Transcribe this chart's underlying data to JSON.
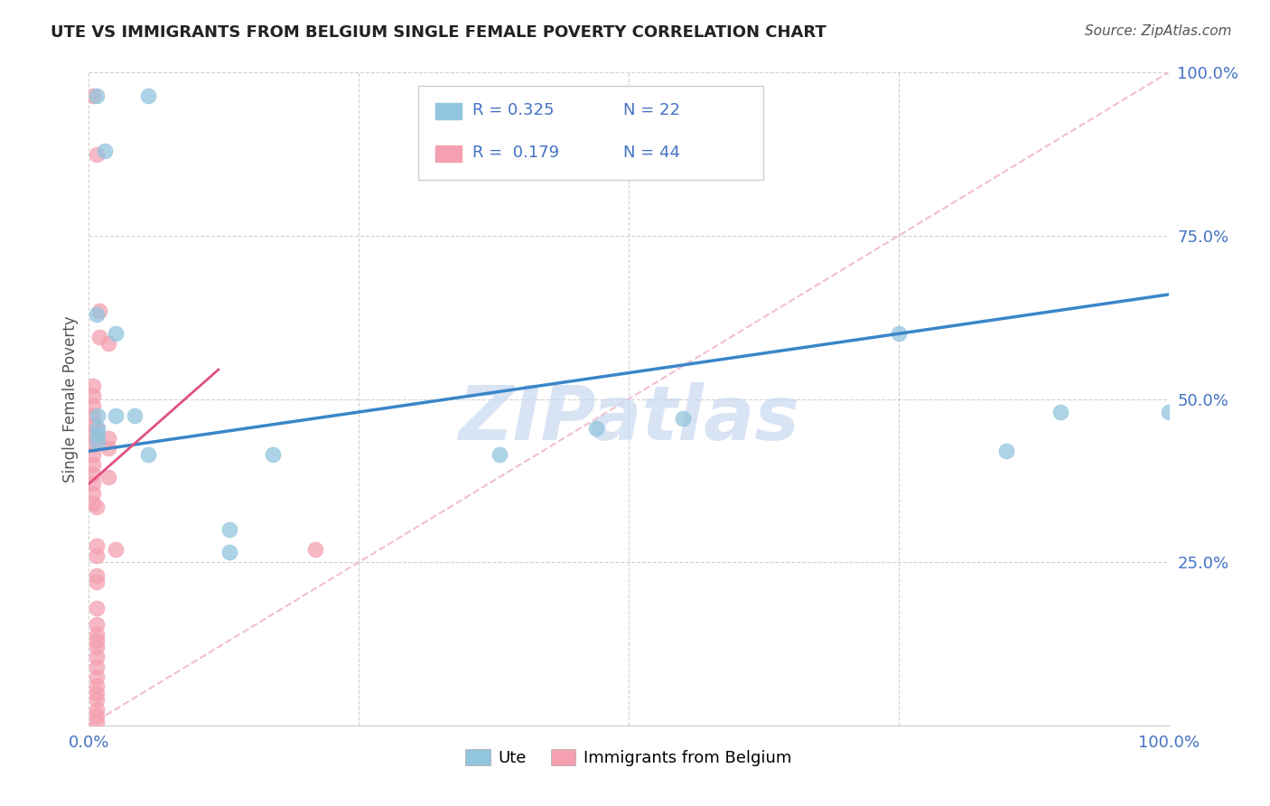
{
  "title": "UTE VS IMMIGRANTS FROM BELGIUM SINGLE FEMALE POVERTY CORRELATION CHART",
  "source": "Source: ZipAtlas.com",
  "ylabel_label": "Single Female Poverty",
  "x_min": 0.0,
  "x_max": 1.0,
  "y_min": 0.0,
  "y_max": 1.0,
  "ute_color": "#92c5de",
  "ute_edge_color": "#92c5de",
  "belgium_color": "#f4a0b0",
  "belgium_edge_color": "#f4a0b0",
  "ute_line_color": "#3a86c8",
  "belgium_line_color": "#e05080",
  "diagonal_color": "#f0b8c8",
  "tick_label_color": "#4472c4",
  "ute_R": "0.325",
  "ute_N": "22",
  "belgium_R": "0.179",
  "belgium_N": "44",
  "watermark_text": "ZIPatlas",
  "watermark_color": "#c8d8f0",
  "ute_points": [
    [
      0.007,
      0.965
    ],
    [
      0.055,
      0.965
    ],
    [
      0.015,
      0.88
    ],
    [
      0.007,
      0.63
    ],
    [
      0.025,
      0.6
    ],
    [
      0.025,
      0.475
    ],
    [
      0.042,
      0.475
    ],
    [
      0.008,
      0.475
    ],
    [
      0.008,
      0.455
    ],
    [
      0.008,
      0.445
    ],
    [
      0.008,
      0.435
    ],
    [
      0.055,
      0.415
    ],
    [
      0.17,
      0.415
    ],
    [
      0.38,
      0.415
    ],
    [
      0.13,
      0.3
    ],
    [
      0.13,
      0.265
    ],
    [
      0.47,
      0.455
    ],
    [
      0.55,
      0.47
    ],
    [
      0.75,
      0.6
    ],
    [
      0.9,
      0.48
    ],
    [
      0.85,
      0.42
    ],
    [
      1.0,
      0.48
    ]
  ],
  "belgium_points": [
    [
      0.004,
      0.965
    ],
    [
      0.007,
      0.875
    ],
    [
      0.01,
      0.635
    ],
    [
      0.01,
      0.595
    ],
    [
      0.018,
      0.585
    ],
    [
      0.004,
      0.52
    ],
    [
      0.004,
      0.505
    ],
    [
      0.004,
      0.49
    ],
    [
      0.004,
      0.475
    ],
    [
      0.004,
      0.46
    ],
    [
      0.004,
      0.445
    ],
    [
      0.004,
      0.43
    ],
    [
      0.004,
      0.415
    ],
    [
      0.004,
      0.4
    ],
    [
      0.004,
      0.385
    ],
    [
      0.004,
      0.37
    ],
    [
      0.004,
      0.355
    ],
    [
      0.004,
      0.34
    ],
    [
      0.007,
      0.455
    ],
    [
      0.007,
      0.44
    ],
    [
      0.018,
      0.44
    ],
    [
      0.018,
      0.425
    ],
    [
      0.018,
      0.38
    ],
    [
      0.025,
      0.27
    ],
    [
      0.21,
      0.27
    ],
    [
      0.007,
      0.335
    ],
    [
      0.007,
      0.275
    ],
    [
      0.007,
      0.26
    ],
    [
      0.007,
      0.23
    ],
    [
      0.007,
      0.22
    ],
    [
      0.007,
      0.18
    ],
    [
      0.007,
      0.155
    ],
    [
      0.007,
      0.14
    ],
    [
      0.007,
      0.13
    ],
    [
      0.007,
      0.12
    ],
    [
      0.007,
      0.105
    ],
    [
      0.007,
      0.09
    ],
    [
      0.007,
      0.075
    ],
    [
      0.007,
      0.06
    ],
    [
      0.007,
      0.05
    ],
    [
      0.007,
      0.04
    ],
    [
      0.007,
      0.025
    ],
    [
      0.007,
      0.015
    ],
    [
      0.007,
      0.005
    ]
  ],
  "ute_trend_x0": 0.0,
  "ute_trend_x1": 1.0,
  "ute_trend_y0": 0.42,
  "ute_trend_y1": 0.66,
  "belgium_trend_x0": 0.0,
  "belgium_trend_x1": 0.12,
  "belgium_trend_y0": 0.37,
  "belgium_trend_y1": 0.545
}
